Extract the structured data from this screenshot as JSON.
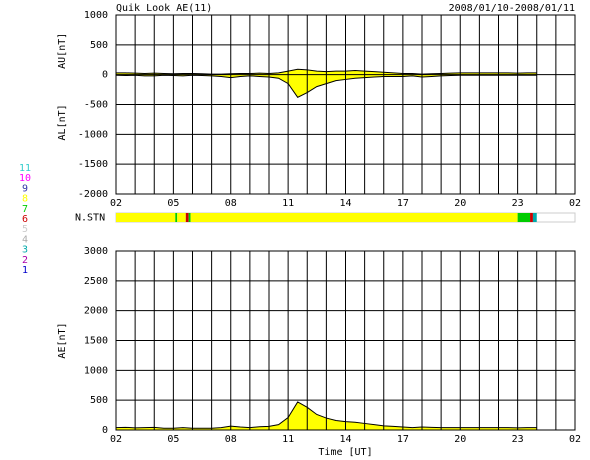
{
  "title": "Quik Look AE(11)",
  "date_range": "2008/01/10-2008/01/11",
  "station_legend": [
    {
      "label": 11,
      "color": "#33cccc"
    },
    {
      "label": 10,
      "color": "#ff00ff"
    },
    {
      "label": 9,
      "color": "#3333aa"
    },
    {
      "label": 8,
      "color": "#ffff00"
    },
    {
      "label": 7,
      "color": "#00cc00"
    },
    {
      "label": 6,
      "color": "#cc0000"
    },
    {
      "label": 5,
      "color": "#cccccc"
    },
    {
      "label": 4,
      "color": "#aaaaaa"
    },
    {
      "label": 3,
      "color": "#00aaaa"
    },
    {
      "label": 2,
      "color": "#aa00aa"
    },
    {
      "label": 1,
      "color": "#0000cc"
    }
  ],
  "chart_data": [
    {
      "type": "area",
      "xlim": [
        0,
        24
      ],
      "xticks": [
        {
          "value": 0,
          "label": "02"
        },
        {
          "value": 3,
          "label": "05"
        },
        {
          "value": 6,
          "label": "08"
        },
        {
          "value": 9,
          "label": "11"
        },
        {
          "value": 12,
          "label": "14"
        },
        {
          "value": 15,
          "label": "17"
        },
        {
          "value": 18,
          "label": "20"
        },
        {
          "value": 21,
          "label": "23"
        },
        {
          "value": 24,
          "label": "02"
        }
      ],
      "xminorticks": [
        1,
        2,
        4,
        5,
        7,
        8,
        10,
        11,
        13,
        14,
        16,
        17,
        19,
        20,
        22,
        23
      ],
      "ylim": [
        -2000,
        1000
      ],
      "yticks": [
        1000,
        500,
        0,
        -500,
        -1000,
        -1500,
        -2000
      ],
      "grid": true,
      "x": [
        0,
        0.5,
        1,
        1.5,
        2,
        2.5,
        3,
        3.5,
        4,
        4.5,
        5,
        5.5,
        6,
        6.5,
        7,
        7.5,
        8,
        8.5,
        9,
        9.5,
        10,
        10.5,
        11,
        11.5,
        12,
        12.5,
        13,
        13.5,
        14,
        14.5,
        15,
        15.5,
        16,
        16.5,
        17,
        17.5,
        18,
        18.5,
        19,
        19.5,
        20,
        20.5,
        21,
        21.5,
        22
      ],
      "series": [
        {
          "label": "AU[nT]",
          "color": "#ffff00",
          "values": [
            30,
            30,
            25,
            20,
            25,
            20,
            15,
            20,
            20,
            15,
            10,
            10,
            15,
            20,
            20,
            25,
            20,
            30,
            60,
            90,
            80,
            60,
            50,
            60,
            60,
            70,
            60,
            50,
            40,
            30,
            20,
            20,
            10,
            15,
            20,
            25,
            30,
            30,
            30,
            30,
            30,
            30,
            25,
            30,
            30
          ]
        },
        {
          "label": "AL[nT]",
          "color": "#ffff00",
          "values": [
            -10,
            -15,
            -10,
            -20,
            -20,
            -10,
            -15,
            -20,
            -10,
            -15,
            -20,
            -30,
            -50,
            -30,
            -20,
            -30,
            -40,
            -60,
            -150,
            -380,
            -300,
            -200,
            -150,
            -100,
            -80,
            -60,
            -50,
            -40,
            -30,
            -30,
            -30,
            -20,
            -40,
            -30,
            -20,
            -15,
            -10,
            -10,
            -10,
            -10,
            -10,
            -10,
            -10,
            -10,
            -10
          ]
        }
      ]
    },
    {
      "type": "station-bar",
      "label": "N.STN",
      "xlim": [
        0,
        24
      ],
      "edges": [
        0,
        3.1,
        3.2,
        3.65,
        3.8,
        3.9,
        21,
        21.65,
        21.8,
        22
      ],
      "values": [
        8,
        7,
        8,
        6,
        7,
        8,
        7,
        6,
        3
      ]
    },
    {
      "type": "area",
      "xlim": [
        0,
        24
      ],
      "x_label": "Time [UT]",
      "xticks": [
        {
          "value": 0,
          "label": "02"
        },
        {
          "value": 3,
          "label": "05"
        },
        {
          "value": 6,
          "label": "08"
        },
        {
          "value": 9,
          "label": "11"
        },
        {
          "value": 12,
          "label": "14"
        },
        {
          "value": 15,
          "label": "17"
        },
        {
          "value": 18,
          "label": "20"
        },
        {
          "value": 21,
          "label": "23"
        },
        {
          "value": 24,
          "label": "02"
        }
      ],
      "xminorticks": [
        1,
        2,
        4,
        5,
        7,
        8,
        10,
        11,
        13,
        14,
        16,
        17,
        19,
        20,
        22,
        23
      ],
      "ylim": [
        0,
        3000
      ],
      "yticks": [
        3000,
        2500,
        2000,
        1500,
        1000,
        500,
        0
      ],
      "grid": true,
      "x": [
        0,
        0.5,
        1,
        1.5,
        2,
        2.5,
        3,
        3.5,
        4,
        4.5,
        5,
        5.5,
        6,
        6.5,
        7,
        7.5,
        8,
        8.5,
        9,
        9.5,
        10,
        10.5,
        11,
        11.5,
        12,
        12.5,
        13,
        13.5,
        14,
        14.5,
        15,
        15.5,
        16,
        16.5,
        17,
        17.5,
        18,
        18.5,
        19,
        19.5,
        20,
        20.5,
        21,
        21.5,
        22
      ],
      "series": [
        {
          "label": "AE[nT]",
          "color": "#ffff00",
          "values": [
            40,
            45,
            35,
            40,
            45,
            30,
            30,
            40,
            30,
            30,
            30,
            40,
            65,
            50,
            40,
            55,
            60,
            90,
            210,
            470,
            380,
            260,
            200,
            160,
            140,
            130,
            110,
            90,
            70,
            60,
            50,
            40,
            50,
            45,
            40,
            40,
            40,
            40,
            40,
            40,
            40,
            40,
            35,
            40,
            40
          ]
        }
      ]
    }
  ]
}
